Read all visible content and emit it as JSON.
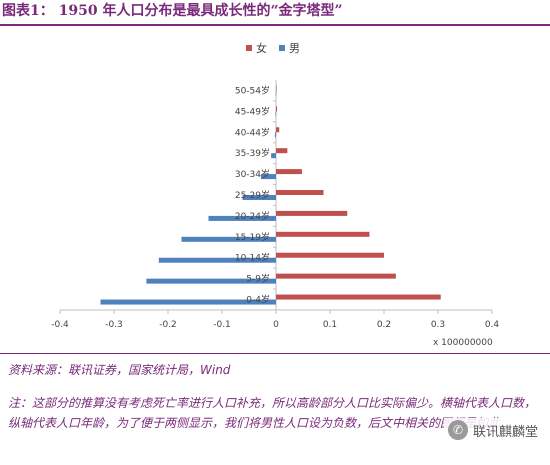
{
  "header": {
    "title": "图表1：   1950 年人口分布是最具成长性的“金字塔型”"
  },
  "chart_data": {
    "type": "bar",
    "orientation": "horizontal",
    "categories": [
      "0-4岁",
      "5-9岁",
      "10-14岁",
      "15-19岁",
      "20-24岁",
      "25-29岁",
      "30-34岁",
      "35-39岁",
      "40-44岁",
      "45-49岁",
      "50-54岁"
    ],
    "series": [
      {
        "name": "女",
        "color": "#c0504d",
        "values": [
          0.305,
          0.222,
          0.2,
          0.173,
          0.132,
          0.088,
          0.048,
          0.021,
          0.006,
          0.002,
          0.001
        ]
      },
      {
        "name": "男",
        "color": "#4f81bd",
        "values": [
          -0.325,
          -0.24,
          -0.217,
          -0.175,
          -0.125,
          -0.062,
          -0.028,
          -0.009,
          -0.002,
          -0.001,
          -0.0005
        ]
      }
    ],
    "xticks": [
      "-0.4",
      "-0.3",
      "-0.2",
      "-0.1",
      "0",
      "0.1",
      "0.2",
      "0.3",
      "0.4"
    ],
    "xlim": [
      -0.4,
      0.4
    ],
    "x_unit": "x 100000000",
    "grid": false,
    "legend_position": "top"
  },
  "footer": {
    "source": "资料来源：联讯证券，国家统计局，Wind",
    "note": "注：这部分的推算没有考虑死亡率进行人口补充，所以高龄部分人口比实际偏少。横轴代表人口数，纵轴代表人口年龄，为了便于两侧显示，我们将男性人口设为负数，后文中相关的图都是如此"
  },
  "watermark": {
    "text": "联讯麒麟堂",
    "icon": "wechat-icon"
  }
}
